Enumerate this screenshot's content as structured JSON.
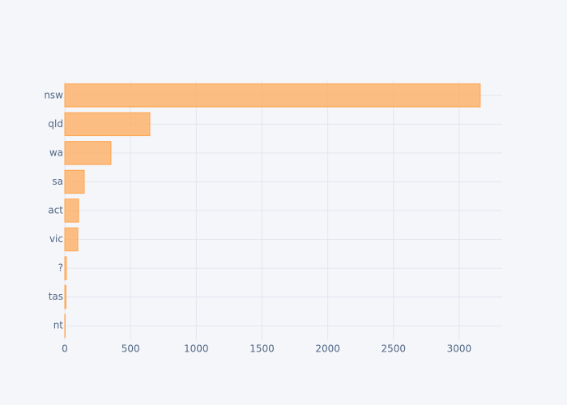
{
  "chart_data": {
    "type": "bar",
    "orientation": "horizontal",
    "categories": [
      "nsw",
      "qld",
      "wa",
      "sa",
      "act",
      "vic",
      "?",
      "tas",
      "nt"
    ],
    "values": [
      3160,
      647,
      351,
      148,
      105,
      99,
      12,
      9,
      3
    ],
    "color": "#ffa54f",
    "xlim": [
      0,
      3327
    ],
    "xticks": [
      0,
      500,
      1000,
      1500,
      2000,
      2500,
      3000
    ],
    "grid": true
  }
}
